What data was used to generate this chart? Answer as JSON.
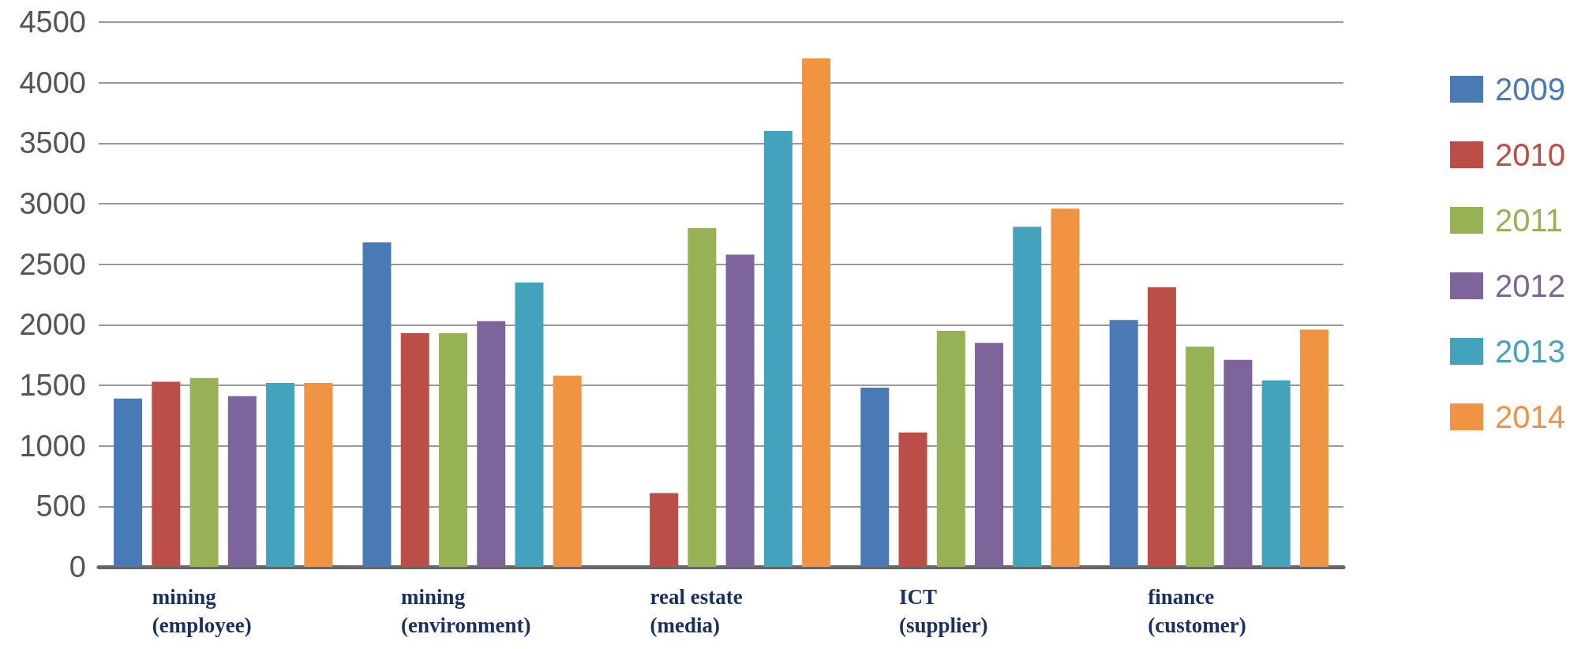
{
  "chart_data": {
    "type": "bar",
    "categories": [
      "mining\n(employee)",
      "mining\n(environment)",
      "real estate\n(media)",
      "ICT\n(supplier)",
      "finance\n(customer)"
    ],
    "series": [
      {
        "name": "2009",
        "color": "#4a7ab5",
        "values": [
          1390,
          2680,
          null,
          1480,
          2040
        ]
      },
      {
        "name": "2010",
        "color": "#bb4f48",
        "values": [
          1530,
          1930,
          610,
          1110,
          2310
        ]
      },
      {
        "name": "2011",
        "color": "#97b155",
        "values": [
          1560,
          1930,
          2800,
          1950,
          1820
        ]
      },
      {
        "name": "2012",
        "color": "#7d649b",
        "values": [
          1410,
          2030,
          2580,
          1850,
          1710
        ]
      },
      {
        "name": "2013",
        "color": "#43a3bd",
        "values": [
          1520,
          2350,
          3600,
          2810,
          1540
        ]
      },
      {
        "name": "2014",
        "color": "#f09443",
        "values": [
          1520,
          1580,
          4200,
          2960,
          1960
        ]
      }
    ],
    "ylim": [
      0,
      4500
    ],
    "yticks": [
      0,
      500,
      1000,
      1500,
      2000,
      2500,
      3000,
      3500,
      4000,
      4500
    ],
    "grid": "y",
    "legend": "right"
  }
}
